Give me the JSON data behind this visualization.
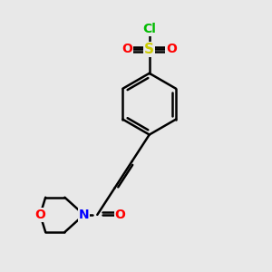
{
  "bg_color": "#e8e8e8",
  "bond_color": "#000000",
  "bond_width": 1.8,
  "S_color": "#cccc00",
  "O_color": "#ff0000",
  "N_color": "#0000ff",
  "Cl_color": "#00bb00",
  "fig_size": [
    3.0,
    3.0
  ],
  "dpi": 100,
  "xlim": [
    0,
    10
  ],
  "ylim": [
    0,
    10
  ]
}
